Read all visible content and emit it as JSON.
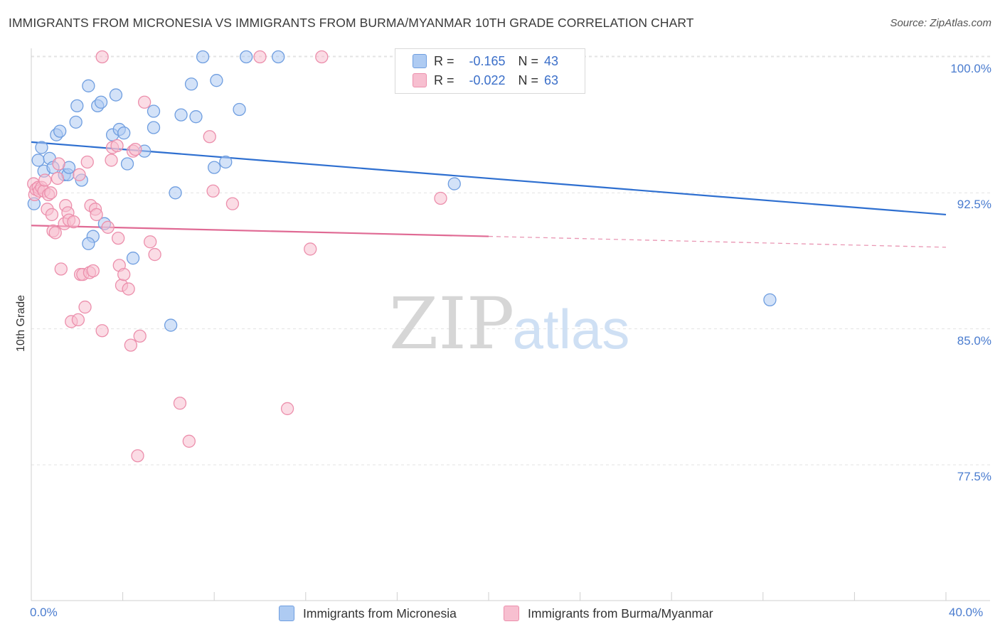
{
  "title": "IMMIGRANTS FROM MICRONESIA VS IMMIGRANTS FROM BURMA/MYANMAR 10TH GRADE CORRELATION CHART",
  "source": "Source: ZipAtlas.com",
  "watermark": {
    "zip": "ZIP",
    "atlas": "atlas"
  },
  "legend": {
    "rows": [
      {
        "r_label": "R =",
        "r_value": "-0.165",
        "n_label": "N =",
        "n_value": "43"
      },
      {
        "r_label": "R =",
        "r_value": "-0.022",
        "n_label": "N =",
        "n_value": "63"
      }
    ]
  },
  "colors": {
    "micronesia_fill": "#aecbf2",
    "micronesia_stroke": "#6f9ee0",
    "micronesia_line": "#2e6fd0",
    "burma_fill": "#f7bfd0",
    "burma_stroke": "#ec8fac",
    "burma_line": "#e06a94",
    "tick_text": "#4a7ccf",
    "grid": "#e3e3e3"
  },
  "chart_data": {
    "type": "scatter",
    "title": "IMMIGRANTS FROM MICRONESIA VS IMMIGRANTS FROM BURMA/MYANMAR 10TH GRADE CORRELATION CHART",
    "xlabel": "",
    "ylabel": "10th Grade",
    "xlim": [
      0,
      40
    ],
    "ylim": [
      70.0,
      100.6
    ],
    "x_tick_labels": [
      "0.0%",
      "40.0%"
    ],
    "y_ticks": [
      100.0,
      92.5,
      85.0,
      77.5
    ],
    "y_tick_labels": [
      "100.0%",
      "92.5%",
      "85.0%",
      "77.5%"
    ],
    "grid": true,
    "legend_placement": "top-center",
    "series": [
      {
        "name": "Immigrants from Micronesia",
        "trend": {
          "x0": 0,
          "y0": 95.3,
          "x1": 40,
          "y1": 91.3
        },
        "points": [
          [
            0.12,
            91.9
          ],
          [
            0.3,
            94.3
          ],
          [
            0.45,
            95.0
          ],
          [
            0.55,
            93.7
          ],
          [
            0.8,
            94.4
          ],
          [
            0.95,
            93.9
          ],
          [
            1.1,
            95.7
          ],
          [
            1.25,
            95.9
          ],
          [
            1.45,
            93.5
          ],
          [
            1.6,
            93.5
          ],
          [
            1.65,
            93.9
          ],
          [
            1.95,
            96.4
          ],
          [
            2.0,
            97.3
          ],
          [
            2.2,
            93.2
          ],
          [
            2.5,
            98.4
          ],
          [
            2.7,
            90.1
          ],
          [
            2.9,
            97.3
          ],
          [
            3.05,
            97.5
          ],
          [
            3.2,
            90.8
          ],
          [
            3.55,
            95.7
          ],
          [
            3.7,
            97.9
          ],
          [
            3.85,
            96.0
          ],
          [
            4.05,
            95.8
          ],
          [
            4.2,
            94.1
          ],
          [
            4.45,
            88.9
          ],
          [
            4.95,
            94.8
          ],
          [
            5.35,
            97.0
          ],
          [
            5.35,
            96.1
          ],
          [
            6.1,
            85.2
          ],
          [
            6.3,
            92.5
          ],
          [
            6.55,
            96.8
          ],
          [
            7.0,
            98.5
          ],
          [
            7.2,
            96.7
          ],
          [
            7.5,
            100.0
          ],
          [
            8.0,
            93.9
          ],
          [
            8.1,
            98.7
          ],
          [
            8.5,
            94.2
          ],
          [
            9.1,
            97.1
          ],
          [
            9.4,
            100.0
          ],
          [
            10.8,
            100.0
          ],
          [
            18.5,
            93.0
          ],
          [
            32.3,
            86.6
          ],
          [
            2.5,
            89.7
          ]
        ]
      },
      {
        "name": "Immigrants from Burma/Myanmar",
        "trend": {
          "x0": 0,
          "y0": 90.7,
          "x1": 40,
          "y1": 89.5,
          "solid_until_x": 20
        },
        "points": [
          [
            0.1,
            93.0
          ],
          [
            0.15,
            92.4
          ],
          [
            0.2,
            92.7
          ],
          [
            0.3,
            92.8
          ],
          [
            0.35,
            92.6
          ],
          [
            0.45,
            92.8
          ],
          [
            0.55,
            92.6
          ],
          [
            0.6,
            93.2
          ],
          [
            0.7,
            91.6
          ],
          [
            0.75,
            92.4
          ],
          [
            0.85,
            92.5
          ],
          [
            0.9,
            91.3
          ],
          [
            0.95,
            90.4
          ],
          [
            1.05,
            90.3
          ],
          [
            1.15,
            93.3
          ],
          [
            1.2,
            94.1
          ],
          [
            1.3,
            88.3
          ],
          [
            1.45,
            90.8
          ],
          [
            1.5,
            91.8
          ],
          [
            1.6,
            91.4
          ],
          [
            1.65,
            91.0
          ],
          [
            1.75,
            85.4
          ],
          [
            1.85,
            90.9
          ],
          [
            2.05,
            85.5
          ],
          [
            2.1,
            93.5
          ],
          [
            2.15,
            88.0
          ],
          [
            2.25,
            88.0
          ],
          [
            2.35,
            86.2
          ],
          [
            2.45,
            94.2
          ],
          [
            2.55,
            88.1
          ],
          [
            2.6,
            91.8
          ],
          [
            2.7,
            88.2
          ],
          [
            2.8,
            91.6
          ],
          [
            2.85,
            91.3
          ],
          [
            3.1,
            100.0
          ],
          [
            3.1,
            84.9
          ],
          [
            3.35,
            90.6
          ],
          [
            3.5,
            94.3
          ],
          [
            3.55,
            95.0
          ],
          [
            3.75,
            95.1
          ],
          [
            3.8,
            90.0
          ],
          [
            3.85,
            88.5
          ],
          [
            3.95,
            87.4
          ],
          [
            4.05,
            88.0
          ],
          [
            4.25,
            87.2
          ],
          [
            4.35,
            84.1
          ],
          [
            4.45,
            94.8
          ],
          [
            4.55,
            94.9
          ],
          [
            4.65,
            78.0
          ],
          [
            4.75,
            84.6
          ],
          [
            4.95,
            97.5
          ],
          [
            5.2,
            89.8
          ],
          [
            5.4,
            89.1
          ],
          [
            6.5,
            80.9
          ],
          [
            6.9,
            78.8
          ],
          [
            7.8,
            95.6
          ],
          [
            7.95,
            92.6
          ],
          [
            8.8,
            91.9
          ],
          [
            10.0,
            100.0
          ],
          [
            11.2,
            80.6
          ],
          [
            12.2,
            89.4
          ],
          [
            12.7,
            100.0
          ],
          [
            17.9,
            92.2
          ]
        ]
      }
    ]
  },
  "bottom_legend": [
    {
      "label": "Immigrants from Micronesia"
    },
    {
      "label": "Immigrants from Burma/Myanmar"
    }
  ]
}
